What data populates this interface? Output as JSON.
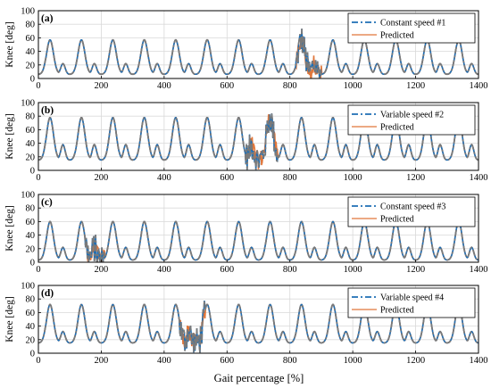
{
  "colors": {
    "measured": "#1f6fb5",
    "predicted": "#e0763a",
    "overlap": "#7a7a7a",
    "grid": "#d9d9d9"
  },
  "xlabel": "Gait percentage [%]",
  "chart_data": [
    {
      "type": "line",
      "panel": "(a)",
      "ylabel": "Knee [deg]",
      "xlim": [
        0,
        1400
      ],
      "ylim": [
        0,
        100
      ],
      "xticks": [
        0,
        200,
        400,
        600,
        800,
        1000,
        1200,
        1400
      ],
      "yticks": [
        0,
        20,
        40,
        60,
        80,
        100
      ],
      "grid": true,
      "legend_position": "top-right",
      "cycles": 14,
      "peak": 57,
      "stance_peak": 22,
      "trough": 6,
      "noise_region": [
        820,
        900
      ],
      "series": [
        {
          "name": "Constant speed #1",
          "style": "dash-dot"
        },
        {
          "name": "Predicted",
          "style": "solid"
        }
      ]
    },
    {
      "type": "line",
      "panel": "(b)",
      "ylabel": "Knee [deg]",
      "xlim": [
        0,
        1400
      ],
      "ylim": [
        0,
        100
      ],
      "xticks": [
        0,
        200,
        400,
        600,
        800,
        1000,
        1200,
        1400
      ],
      "yticks": [
        0,
        20,
        40,
        60,
        80,
        100
      ],
      "grid": true,
      "legend_position": "top-right",
      "cycles": 14,
      "peak": 78,
      "stance_peak": 38,
      "trough": 15,
      "noise_region": [
        660,
        760
      ],
      "series": [
        {
          "name": "Variable speed #2",
          "style": "dash-dot"
        },
        {
          "name": "Predicted",
          "style": "solid"
        }
      ]
    },
    {
      "type": "line",
      "panel": "(c)",
      "ylabel": "Knee [deg]",
      "xlim": [
        0,
        1400
      ],
      "ylim": [
        0,
        100
      ],
      "xticks": [
        0,
        200,
        400,
        600,
        800,
        1000,
        1200,
        1400
      ],
      "yticks": [
        0,
        20,
        40,
        60,
        80,
        100
      ],
      "grid": true,
      "legend_position": "top-right",
      "cycles": 14,
      "peak": 60,
      "stance_peak": 22,
      "trough": 3,
      "noise_region": [
        150,
        210
      ],
      "series": [
        {
          "name": "Constant speed #3",
          "style": "dash-dot"
        },
        {
          "name": "Predicted",
          "style": "solid"
        }
      ]
    },
    {
      "type": "line",
      "panel": "(d)",
      "ylabel": "Knee [deg]",
      "xlim": [
        0,
        1400
      ],
      "ylim": [
        0,
        100
      ],
      "xticks": [
        0,
        200,
        400,
        600,
        800,
        1000,
        1200,
        1400
      ],
      "yticks": [
        0,
        20,
        40,
        60,
        80,
        100
      ],
      "grid": true,
      "legend_position": "top-right",
      "cycles": 14,
      "peak": 72,
      "stance_peak": 32,
      "trough": 15,
      "noise_region": [
        450,
        530
      ],
      "series": [
        {
          "name": "Variable speed #4",
          "style": "dash-dot"
        },
        {
          "name": "Predicted",
          "style": "solid"
        }
      ]
    }
  ]
}
